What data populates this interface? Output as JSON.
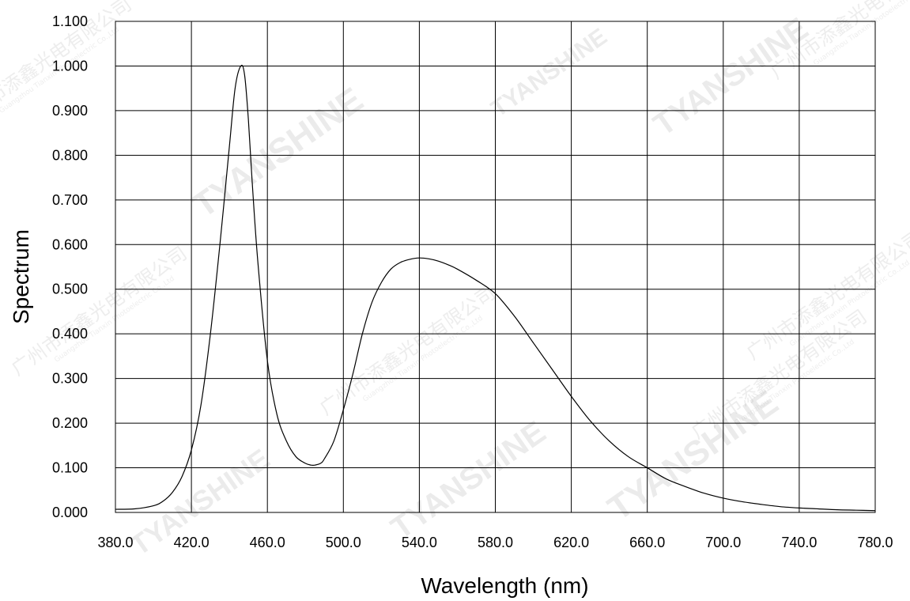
{
  "chart_data": {
    "type": "line",
    "title": "",
    "xlabel": "Wavelength (nm)",
    "ylabel": "Spectrum",
    "xlim": [
      380,
      780
    ],
    "ylim": [
      0,
      1.1
    ],
    "grid": true,
    "x_ticks": [
      380,
      420,
      460,
      500,
      540,
      580,
      620,
      660,
      700,
      740,
      780
    ],
    "x_tick_labels": [
      "380.0",
      "420.0",
      "460.0",
      "500.0",
      "540.0",
      "580.0",
      "620.0",
      "660.0",
      "700.0",
      "740.0",
      "780.0"
    ],
    "y_ticks": [
      0,
      0.1,
      0.2,
      0.3,
      0.4,
      0.5,
      0.6,
      0.7,
      0.8,
      0.9,
      1.0,
      1.1
    ],
    "y_tick_labels": [
      "0.000",
      "0.100",
      "0.200",
      "0.300",
      "0.400",
      "0.500",
      "0.600",
      "0.700",
      "0.800",
      "0.900",
      "1.000",
      "1.100"
    ],
    "series": [
      {
        "x": [
          380,
          390,
          400,
          405,
          410,
          415,
          420,
          425,
          430,
          435,
          440,
          443,
          446,
          448,
          450,
          452,
          455,
          460,
          465,
          470,
          475,
          480,
          483,
          485,
          488,
          490,
          495,
          500,
          505,
          510,
          515,
          520,
          525,
          530,
          535,
          540,
          545,
          550,
          555,
          560,
          570,
          580,
          590,
          600,
          610,
          620,
          630,
          640,
          650,
          660,
          670,
          680,
          690,
          700,
          710,
          720,
          730,
          740,
          750,
          760,
          770,
          780
        ],
        "y": [
          0.007,
          0.008,
          0.015,
          0.025,
          0.045,
          0.08,
          0.14,
          0.24,
          0.4,
          0.6,
          0.82,
          0.95,
          1.0,
          0.98,
          0.88,
          0.74,
          0.56,
          0.34,
          0.22,
          0.16,
          0.125,
          0.11,
          0.106,
          0.106,
          0.11,
          0.12,
          0.16,
          0.23,
          0.31,
          0.4,
          0.47,
          0.515,
          0.545,
          0.56,
          0.567,
          0.57,
          0.568,
          0.563,
          0.555,
          0.545,
          0.52,
          0.49,
          0.44,
          0.38,
          0.32,
          0.26,
          0.205,
          0.16,
          0.125,
          0.1,
          0.075,
          0.058,
          0.043,
          0.032,
          0.024,
          0.018,
          0.013,
          0.01,
          0.008,
          0.006,
          0.005,
          0.004
        ]
      }
    ]
  },
  "watermark": {
    "brand": "TYANSHINE",
    "company_cn": "广州市添鑫光电有限公司",
    "company_en": "Guangzhou Tianxin Photoelectric Co.,Ltd",
    "color": "#b8b8b8"
  }
}
